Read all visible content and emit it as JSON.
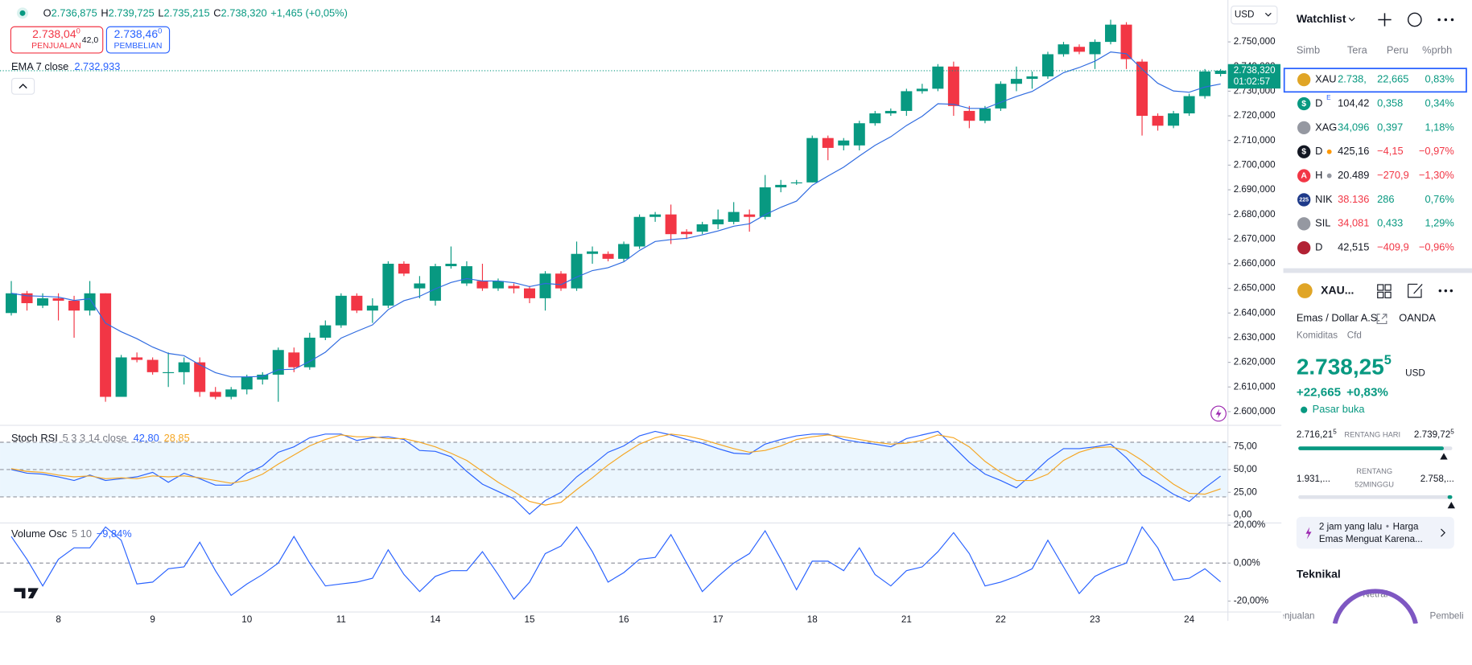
{
  "header": {
    "o_label": "O",
    "open": "2.736,875",
    "h_label": "H",
    "high": "2.739,725",
    "l_label": "L",
    "low": "2.735,215",
    "c_label": "C",
    "close": "2.738,320",
    "change": "+1,465 (+0,05%)"
  },
  "sell": {
    "price": "2.738,04",
    "sup": "0",
    "label": "PENJUALAN"
  },
  "spread": "42,0",
  "buy": {
    "price": "2.738,46",
    "sup": "0",
    "label": "PEMBELIAN"
  },
  "currency": "USD",
  "chart_data": [
    {
      "type": "candlestick",
      "categories": [
        null,
        null,
        null,
        "8",
        null,
        null,
        null,
        null,
        null,
        "9",
        null,
        null,
        null,
        null,
        null,
        "10",
        null,
        null,
        null,
        null,
        null,
        "11",
        null,
        null,
        null,
        null,
        null,
        "14",
        null,
        null,
        null,
        null,
        null,
        "15",
        null,
        null,
        null,
        null,
        null,
        "16",
        null,
        null,
        null,
        null,
        null,
        "17",
        null,
        null,
        null,
        null,
        null,
        "18",
        null,
        null,
        null,
        null,
        null,
        "21",
        null,
        null,
        null,
        null,
        null,
        "22",
        null,
        null,
        null,
        null,
        null,
        "23",
        null,
        null,
        null,
        null,
        null,
        "24",
        null,
        null
      ],
      "open": [
        2640,
        2648,
        2643,
        2646,
        2645,
        2641,
        2648,
        2606,
        2622,
        2621,
        2616,
        2616,
        2620,
        2608,
        2606,
        2609,
        2613,
        2615,
        2624,
        2618,
        2630,
        2635,
        2647,
        2641,
        2643,
        2660,
        2650,
        2645,
        2659,
        2652,
        2653,
        2650,
        2651,
        2650,
        2646,
        2656,
        2650,
        2664,
        2664,
        2662,
        2667,
        2679,
        2680,
        2673,
        2673,
        2676,
        2677,
        2680,
        2679,
        2691,
        2693,
        2693,
        2711,
        2708,
        2708,
        2717,
        2721,
        2722,
        2730,
        2731,
        2740,
        2722,
        2718,
        2723,
        2733,
        2735,
        2736,
        2745,
        2748,
        2745,
        2750,
        2757,
        2742,
        2720,
        2716,
        2721,
        2728,
        2737
      ],
      "high": [
        2653,
        2649,
        2648,
        2648,
        2647,
        2653,
        2648,
        2623,
        2624,
        2622,
        2624,
        2622,
        2622,
        2610,
        2610,
        2615,
        2616,
        2626,
        2626,
        2632,
        2637,
        2648,
        2648,
        2646,
        2661,
        2661,
        2655,
        2660,
        2667,
        2661,
        2660,
        2654,
        2652,
        2651,
        2657,
        2657,
        2669,
        2667,
        2665,
        2669,
        2680,
        2681,
        2684,
        2674,
        2677,
        2682,
        2685,
        2682,
        2696,
        2694,
        2694,
        2712,
        2712,
        2711,
        2718,
        2722,
        2723,
        2731,
        2733,
        2741,
        2742,
        2724,
        2724,
        2734,
        2740,
        2738,
        2746,
        2750,
        2749,
        2751,
        2759,
        2758,
        2743,
        2721,
        2722,
        2729,
        2739,
        2739
      ],
      "low": [
        2639,
        2641,
        2642,
        2637,
        2630,
        2639,
        2604,
        2606,
        2620,
        2615,
        2610,
        2611,
        2606,
        2605,
        2605,
        2607,
        2611,
        2604,
        2616,
        2617,
        2629,
        2634,
        2640,
        2636,
        2642,
        2655,
        2646,
        2643,
        2658,
        2651,
        2649,
        2649,
        2648,
        2644,
        2641,
        2649,
        2649,
        2660,
        2661,
        2661,
        2666,
        2677,
        2668,
        2670,
        2672,
        2674,
        2676,
        2673,
        2678,
        2689,
        2692,
        2693,
        2702,
        2706,
        2706,
        2716,
        2720,
        2720,
        2729,
        2730,
        2720,
        2715,
        2717,
        2722,
        2730,
        2731,
        2735,
        2744,
        2745,
        2739,
        2749,
        2739,
        2712,
        2714,
        2715,
        2720,
        2727,
        2736
      ],
      "close": [
        2648,
        2644,
        2646,
        2645,
        2641,
        2648,
        2606,
        2622,
        2621,
        2616,
        2616,
        2620,
        2608,
        2606,
        2609,
        2614,
        2615,
        2625,
        2618,
        2630,
        2635,
        2647,
        2641,
        2643,
        2660,
        2656,
        2652,
        2659,
        2660,
        2659,
        2650,
        2653,
        2650,
        2646,
        2656,
        2650,
        2664,
        2665,
        2662,
        2668,
        2679,
        2680,
        2672,
        2672,
        2676,
        2678,
        2681,
        2679,
        2691,
        2692,
        2693,
        2711,
        2707,
        2710,
        2717,
        2721,
        2722,
        2730,
        2731,
        2740,
        2724,
        2718,
        2723,
        2733,
        2735,
        2736,
        2745,
        2749,
        2746,
        2750,
        2757,
        2743,
        2720,
        2716,
        2721,
        2728,
        2738,
        2738.32
      ],
      "up_color": "#089981",
      "down_color": "#f23645",
      "series": [
        {
          "name": "EMA 7 close",
          "color": "#2f6be0",
          "legend_value": "2.732,933",
          "values": [
            2648,
            2647,
            2646.8,
            2646.5,
            2645.1,
            2645.8,
            2635.9,
            2632.4,
            2629.6,
            2626.2,
            2623.6,
            2622.7,
            2619,
            2615.8,
            2614.1,
            2614.1,
            2614.3,
            2617,
            2617.2,
            2620.4,
            2624.1,
            2629.8,
            2632.6,
            2635.2,
            2641.4,
            2645,
            2646.8,
            2649.8,
            2652.4,
            2654,
            2653,
            2653,
            2652.3,
            2650.7,
            2652,
            2651.5,
            2654.6,
            2657.2,
            2658.4,
            2660.8,
            2665.4,
            2669,
            2669.8,
            2670.3,
            2671.7,
            2673.3,
            2675.2,
            2676.2,
            2679.9,
            2682.9,
            2685.4,
            2691.8,
            2695.6,
            2699.2,
            2703.7,
            2708,
            2711.5,
            2716.1,
            2719.8,
            2724.9,
            2724.7,
            2723,
            2723,
            2725.5,
            2727.9,
            2729.9,
            2733.7,
            2737.5,
            2739.6,
            2742.2,
            2745.9,
            2745.2,
            2738.9,
            2733.2,
            2730.1,
            2729.6,
            2731.7,
            2732.933
          ]
        }
      ],
      "last_price_label": "2.738,320",
      "countdown": "01:02:57",
      "ylim": [
        2595,
        2767
      ],
      "yticks": [
        {
          "value": 2600,
          "label": "2.600,000"
        },
        {
          "value": 2610,
          "label": "2.610,000"
        },
        {
          "value": 2620,
          "label": "2.620,000"
        },
        {
          "value": 2630,
          "label": "2.630,000"
        },
        {
          "value": 2640,
          "label": "2.640,000"
        },
        {
          "value": 2650,
          "label": "2.650,000"
        },
        {
          "value": 2660,
          "label": "2.660,000"
        },
        {
          "value": 2670,
          "label": "2.670,000"
        },
        {
          "value": 2680,
          "label": "2.680,000"
        },
        {
          "value": 2690,
          "label": "2.690,000"
        },
        {
          "value": 2700,
          "label": "2.700,000"
        },
        {
          "value": 2710,
          "label": "2.710,000"
        },
        {
          "value": 2720,
          "label": "2.720,000"
        },
        {
          "value": 2730,
          "label": "2.730,000"
        },
        {
          "value": 2740,
          "label": "2.740,000"
        },
        {
          "value": 2750,
          "label": "2.750,000"
        }
      ],
      "grid": false
    },
    {
      "type": "line",
      "title": "Stoch RSI",
      "params": "5 3 3 14 close",
      "series": [
        {
          "color": "#2962ff",
          "legend_value": "42,80",
          "values": [
            50,
            46,
            45,
            42,
            38,
            44,
            38,
            40,
            42,
            47,
            36,
            46,
            40,
            33,
            33,
            46,
            54,
            69,
            75,
            85,
            89,
            89,
            82,
            85,
            86,
            83,
            71,
            70,
            64,
            48,
            34,
            26,
            18,
            1,
            16,
            25,
            42,
            55,
            69,
            76,
            87,
            92,
            88,
            83,
            79,
            73,
            68,
            67,
            78,
            83,
            87,
            89,
            89,
            83,
            80,
            78,
            75,
            84,
            88,
            92,
            75,
            58,
            45,
            38,
            30,
            45,
            61,
            73,
            73,
            75,
            78,
            63,
            44,
            34,
            23,
            15,
            30,
            42.8
          ]
        },
        {
          "color": "#f5a623",
          "legend_value": "28,85",
          "values": [
            51,
            48,
            47,
            44,
            42,
            43,
            40,
            41,
            40,
            43,
            42,
            43,
            41,
            38,
            35,
            38,
            45,
            56,
            66,
            76,
            83,
            88,
            86,
            86,
            84,
            84,
            80,
            75,
            68,
            60,
            48,
            36,
            26,
            15,
            11,
            14,
            28,
            41,
            55,
            67,
            78,
            85,
            89,
            87,
            83,
            78,
            73,
            69,
            71,
            76,
            83,
            86,
            88,
            86,
            83,
            80,
            78,
            79,
            82,
            88,
            85,
            75,
            59,
            47,
            38,
            38,
            45,
            60,
            69,
            74,
            75,
            71,
            60,
            47,
            34,
            24,
            23,
            28.85
          ]
        }
      ],
      "bands": [
        20,
        50,
        80
      ],
      "ylim": [
        -7,
        97
      ],
      "yticks": [
        {
          "value": 0,
          "label": "0,00"
        },
        {
          "value": 25,
          "label": "25,00"
        },
        {
          "value": 50,
          "label": "50,00"
        },
        {
          "value": 75,
          "label": "75,00"
        }
      ]
    },
    {
      "type": "line",
      "title": "Volume Osc",
      "params": "5 10",
      "series": [
        {
          "color": "#2962ff",
          "legend_value": "−9,84%",
          "values": [
            14,
            2,
            -12,
            2,
            8,
            8,
            19,
            12,
            -11,
            -10,
            -3,
            -2,
            11,
            -4,
            -17,
            -11,
            -6,
            0,
            14,
            0,
            -12,
            -11,
            -10,
            -8,
            7,
            -6,
            -15,
            -7,
            -4,
            -4,
            6,
            -6,
            -19,
            -10,
            5,
            9,
            19,
            6,
            -10,
            -5,
            2,
            3,
            15,
            0,
            -15,
            -7,
            0,
            5,
            17,
            2,
            -14,
            1,
            1,
            -4,
            8,
            -6,
            -12,
            -4,
            -2,
            6,
            16,
            5,
            -12,
            -10,
            -7,
            -3,
            12,
            -2,
            -16,
            -7,
            -3,
            0,
            19,
            8,
            -9,
            -8,
            -3,
            -9.84
          ]
        }
      ],
      "bands": [
        0
      ],
      "ylim": [
        -25.5,
        20.9
      ],
      "yticks": [
        {
          "value": 20,
          "label": "20,00%"
        },
        {
          "value": 0,
          "label": "0,00%"
        },
        {
          "value": -20,
          "label": "-20,00%"
        }
      ]
    }
  ],
  "watchlist": {
    "title": "Watchlist",
    "columns": [
      "Simb",
      "Tera",
      "Peru",
      "%prbh"
    ],
    "rows": [
      {
        "icon_color": "#e0a526",
        "symbol": "XAU",
        "last": "2.738,",
        "last_color": "#089981",
        "change": "22,665",
        "pct": "0,83%",
        "color": "#089981",
        "selected": true
      },
      {
        "icon_color": "#089981",
        "icon_text": "$",
        "symbol": "D",
        "badge": "E",
        "last": "104,42",
        "last_color": "#131722",
        "change": "0,358",
        "pct": "0,34%",
        "color": "#089981"
      },
      {
        "icon_color": "#9598a1",
        "symbol": "XAG",
        "last": "34,096",
        "last_color": "#089981",
        "change": "0,397",
        "pct": "1,18%",
        "color": "#089981"
      },
      {
        "icon_color": "#131722",
        "icon_text": "$",
        "symbol": "D",
        "dot_color": "#ff9800",
        "last": "425,16",
        "last_color": "#131722",
        "change": "−4,15",
        "pct": "−0,97%",
        "color": "#f23645"
      },
      {
        "icon_color": "#f23645",
        "icon_text": "A",
        "symbol": "H",
        "dot_color": "#9598a1",
        "last": "20.489",
        "last_color": "#131722",
        "change": "−270,9",
        "pct": "−1,30%",
        "color": "#f23645"
      },
      {
        "icon_color": "#1e3a8a",
        "icon_text": "225",
        "symbol": "NIK",
        "last": "38.136",
        "last_color": "#f23645",
        "change": "286",
        "pct": "0,76%",
        "color": "#089981"
      },
      {
        "icon_color": "#9598a1",
        "symbol": "SIL",
        "last": "34,081",
        "last_color": "#f23645",
        "change": "0,433",
        "pct": "1,29%",
        "color": "#089981"
      },
      {
        "icon_color": "#b22234",
        "symbol": "D",
        "last": "42,515",
        "last_color": "#131722",
        "change": "−409,9",
        "pct": "−0,96%",
        "color": "#f23645"
      }
    ]
  },
  "detail": {
    "symbol": "XAU...",
    "name": "Emas / Dollar A.S.",
    "broker": "OANDA",
    "category": "Komiditas",
    "kind": "Cfd",
    "price": "2.738,25",
    "price_sup": "5",
    "currency": "USD",
    "change": "+22,665",
    "pct": "+0,83%",
    "status": "Pasar buka",
    "day_low": "2.716,21",
    "day_low_sup": "5",
    "day_label": "RENTANG HARI",
    "day_high": "2.739,72",
    "day_high_sup": "5",
    "year_low": "1.931,...",
    "year_label_1": "RENTANG",
    "year_label_2": "52MINGGU",
    "year_high": "2.758,...",
    "news_time": "2 jam yang lalu",
    "news_title_1": "Harga",
    "news_title_2": "Emas Menguat Karena...",
    "tech_title": "Teknikal",
    "tech_neutral": "Netral",
    "tech_sell": "Penjualan",
    "tech_buy": "Pembeli"
  }
}
